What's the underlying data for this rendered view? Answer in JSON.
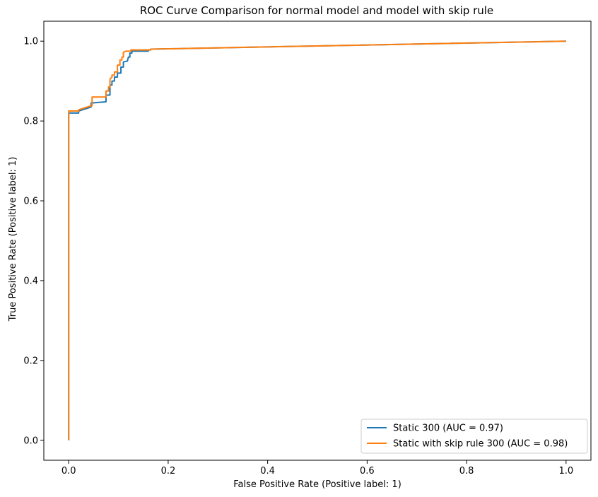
{
  "chart_data": {
    "type": "line",
    "title": "ROC Curve Comparison for normal model and model with skip rule",
    "xlabel": "False Positive Rate (Positive label: 1)",
    "ylabel": "True Positive Rate (Positive label: 1)",
    "xlim": [
      -0.05,
      1.05
    ],
    "ylim": [
      -0.05,
      1.05
    ],
    "xticks": [
      0.0,
      0.2,
      0.4,
      0.6,
      0.8,
      1.0
    ],
    "yticks": [
      0.0,
      0.2,
      0.4,
      0.6,
      0.8,
      1.0
    ],
    "xtick_labels": [
      "0.0",
      "0.2",
      "0.4",
      "0.6",
      "0.8",
      "1.0"
    ],
    "ytick_labels": [
      "0.0",
      "0.2",
      "0.4",
      "0.6",
      "0.8",
      "1.0"
    ],
    "grid": false,
    "legend_position": "bottom-right",
    "series": [
      {
        "name": "Static 300 (AUC = 0.97)",
        "color": "#1f77b4",
        "points": [
          [
            0.0,
            0.0
          ],
          [
            0.0,
            0.82
          ],
          [
            0.02,
            0.82
          ],
          [
            0.02,
            0.825
          ],
          [
            0.045,
            0.835
          ],
          [
            0.045,
            0.845
          ],
          [
            0.075,
            0.848
          ],
          [
            0.075,
            0.865
          ],
          [
            0.083,
            0.865
          ],
          [
            0.083,
            0.89
          ],
          [
            0.087,
            0.89
          ],
          [
            0.087,
            0.9
          ],
          [
            0.092,
            0.9
          ],
          [
            0.092,
            0.91
          ],
          [
            0.098,
            0.91
          ],
          [
            0.098,
            0.92
          ],
          [
            0.105,
            0.92
          ],
          [
            0.105,
            0.935
          ],
          [
            0.11,
            0.935
          ],
          [
            0.11,
            0.948
          ],
          [
            0.118,
            0.95
          ],
          [
            0.12,
            0.96
          ],
          [
            0.123,
            0.96
          ],
          [
            0.123,
            0.97
          ],
          [
            0.127,
            0.97
          ],
          [
            0.127,
            0.975
          ],
          [
            0.16,
            0.975
          ],
          [
            0.16,
            0.978
          ],
          [
            0.165,
            0.978
          ],
          [
            0.165,
            0.98
          ],
          [
            1.0,
            1.0
          ]
        ]
      },
      {
        "name": "Static with skip rule 300 (AUC = 0.98)",
        "color": "#ff7f0e",
        "points": [
          [
            0.0,
            0.0
          ],
          [
            0.0,
            0.825
          ],
          [
            0.02,
            0.825
          ],
          [
            0.02,
            0.828
          ],
          [
            0.045,
            0.838
          ],
          [
            0.047,
            0.838
          ],
          [
            0.047,
            0.86
          ],
          [
            0.075,
            0.86
          ],
          [
            0.075,
            0.875
          ],
          [
            0.08,
            0.875
          ],
          [
            0.08,
            0.885
          ],
          [
            0.083,
            0.885
          ],
          [
            0.083,
            0.905
          ],
          [
            0.087,
            0.91
          ],
          [
            0.087,
            0.915
          ],
          [
            0.092,
            0.915
          ],
          [
            0.092,
            0.923
          ],
          [
            0.098,
            0.923
          ],
          [
            0.098,
            0.94
          ],
          [
            0.103,
            0.94
          ],
          [
            0.103,
            0.953
          ],
          [
            0.107,
            0.953
          ],
          [
            0.107,
            0.96
          ],
          [
            0.11,
            0.96
          ],
          [
            0.11,
            0.972
          ],
          [
            0.115,
            0.975
          ],
          [
            0.125,
            0.975
          ],
          [
            0.125,
            0.978
          ],
          [
            0.165,
            0.978
          ],
          [
            0.165,
            0.98
          ],
          [
            1.0,
            1.0
          ]
        ]
      }
    ]
  }
}
